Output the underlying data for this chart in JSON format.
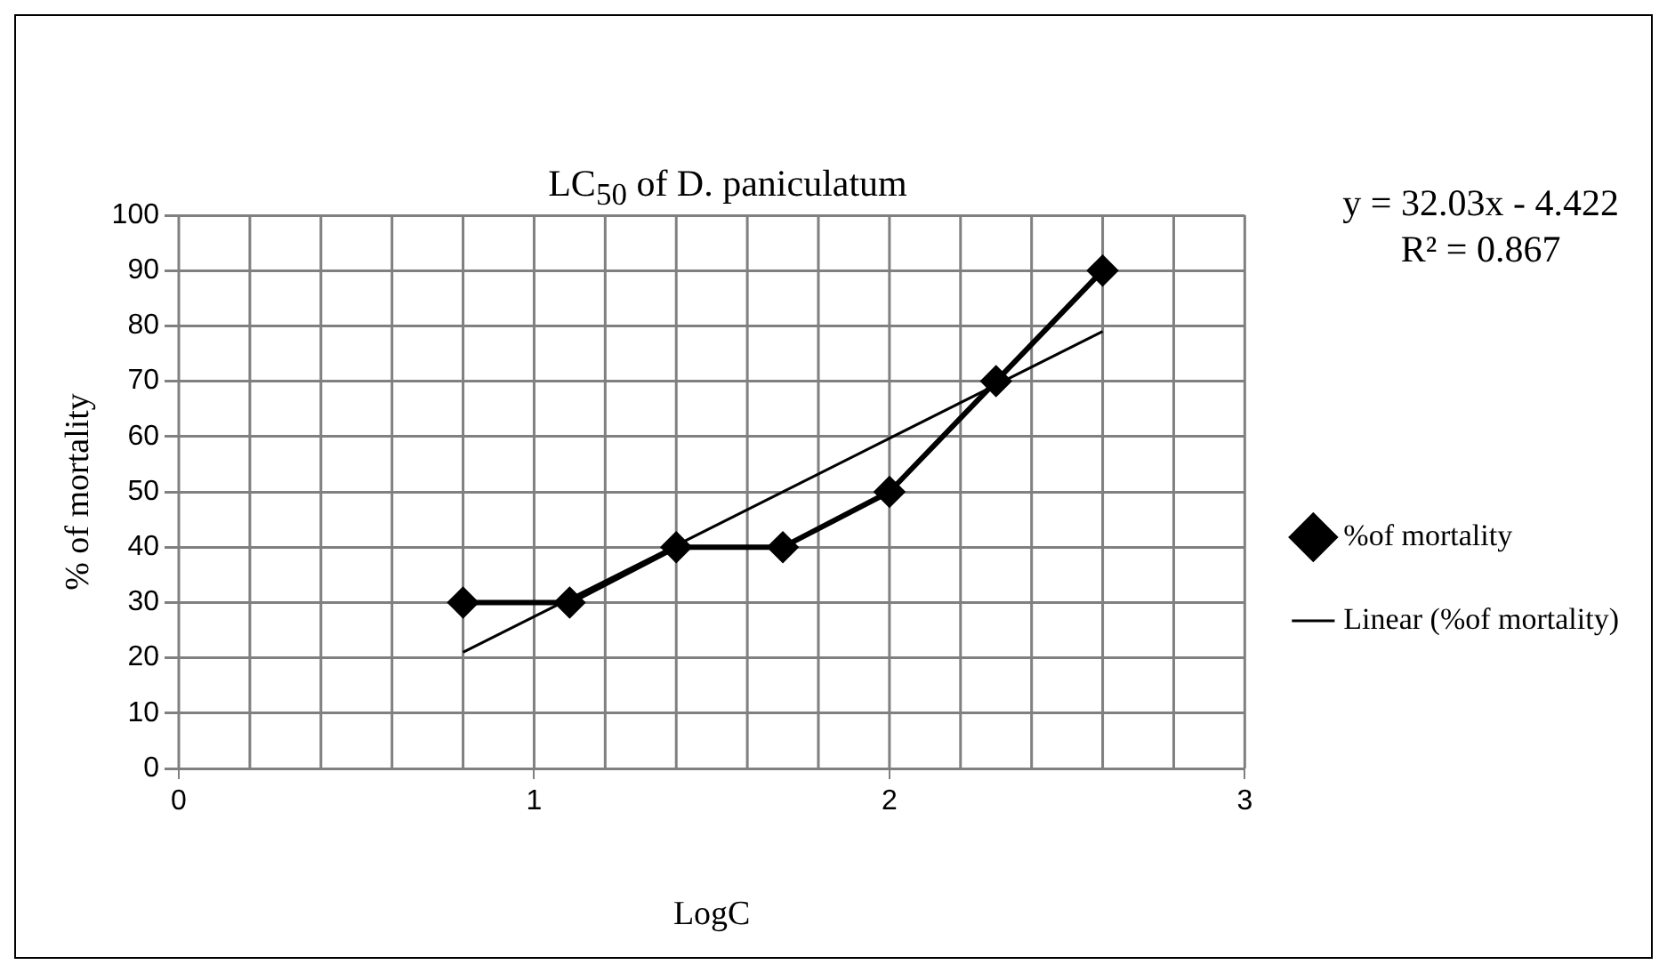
{
  "chart_data": {
    "type": "line",
    "title": "LC$_{50}$ of D. paniculatum",
    "xlabel": "LogC",
    "ylabel": "% of mortality",
    "x": [
      0.8,
      1.1,
      1.4,
      1.7,
      2.0,
      2.3,
      2.6
    ],
    "series": [
      {
        "name": "%of mortality",
        "color": "#000000",
        "values": [
          30,
          30,
          40,
          40,
          50,
          70,
          90
        ],
        "marker": "diamond"
      },
      {
        "name": "Linear (%of mortality)",
        "type": "line",
        "color": "#000000",
        "x": [
          0.8,
          2.6
        ],
        "values": [
          21,
          79
        ],
        "marker": "none"
      }
    ],
    "xlim": [
      0,
      3
    ],
    "xticks": [
      0,
      1,
      2,
      3
    ],
    "ylim": [
      0,
      100
    ],
    "yticks": [
      0,
      10,
      20,
      30,
      40,
      50,
      60,
      70,
      80,
      90,
      100
    ],
    "grid": true,
    "legend": "right",
    "line_style": "solid",
    "annotations": [
      "y = 32.03x - 4.422",
      "R² = 0.867"
    ]
  }
}
